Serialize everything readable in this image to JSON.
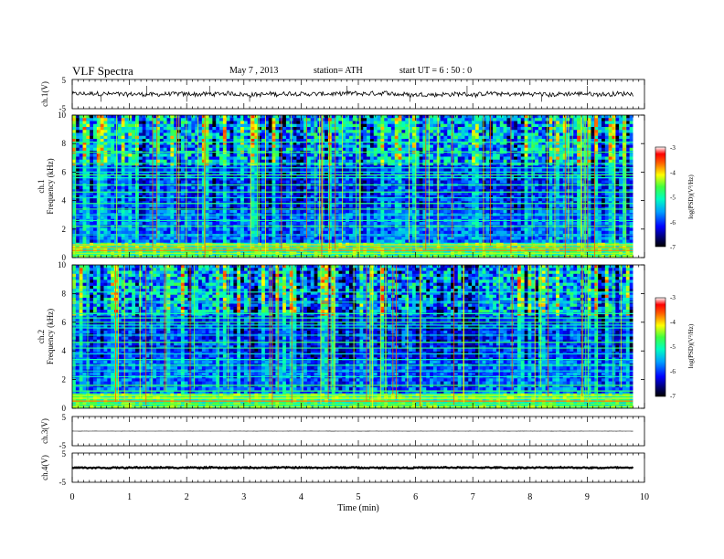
{
  "header": {
    "title": "VLF  Spectra",
    "date": "May 7  , 2013",
    "station": "station= ATH",
    "start": "start  UT  =    6  : 50 : 0"
  },
  "chart_data": [
    {
      "type": "line",
      "panel": "ch1-waveform",
      "ylabel": "ch.1(V)",
      "ylim": [
        -5,
        5
      ],
      "yticks": [
        "5",
        "-5"
      ],
      "xlim": [
        0,
        10
      ],
      "baseline_v": 0,
      "noise_amplitude_v": 1.5,
      "grid": false
    },
    {
      "type": "heatmap",
      "panel": "ch1-spectrogram",
      "ylabel": "ch.1\nFrequency  (kHz)",
      "ylabel_lines": [
        "ch.1",
        "Frequency  (kHz)"
      ],
      "ylim": [
        0,
        10
      ],
      "yticks": [
        "0",
        "2",
        "4",
        "6",
        "8",
        "10"
      ],
      "xlim": [
        0,
        10
      ],
      "data_end_min": 9.8,
      "colorbar": {
        "label": "log(PSD)(V²/Hz)",
        "range": [
          -7,
          -3
        ],
        "ticks": [
          "-3",
          "-4",
          "-5",
          "-6",
          "-7"
        ]
      },
      "narrowband_lines_khz": [
        0.1,
        0.3,
        0.5,
        0.7,
        0.9,
        1.6,
        2.2,
        2.6,
        3.0,
        3.4,
        3.8,
        4.2,
        4.6,
        5.1,
        5.6,
        5.8,
        6.0,
        6.3,
        6.6,
        7.4,
        8.1
      ]
    },
    {
      "type": "heatmap",
      "panel": "ch2-spectrogram",
      "ylabel": "ch.2\nFrequency  (kHz)",
      "ylabel_lines": [
        "ch.2",
        "Frequency  (kHz)"
      ],
      "ylim": [
        0,
        10
      ],
      "yticks": [
        "0",
        "2",
        "4",
        "6",
        "8",
        "10"
      ],
      "xlim": [
        0,
        10
      ],
      "data_end_min": 9.8,
      "colorbar": {
        "label": "log(PSD)(V²/Hz)",
        "range": [
          -7,
          -3
        ],
        "ticks": [
          "-3",
          "-4",
          "-5",
          "-6",
          "-7"
        ]
      },
      "narrowband_lines_khz": [
        0.1,
        0.3,
        0.5,
        0.7,
        0.9,
        1.2,
        1.6,
        2.2,
        2.6,
        3.0,
        3.4,
        3.8,
        4.2,
        4.6,
        5.1,
        5.6,
        5.8,
        6.0,
        6.3,
        6.6,
        7.4,
        8.1
      ]
    },
    {
      "type": "line",
      "panel": "ch3-waveform",
      "ylabel": "ch.3(V)",
      "ylim": [
        -5,
        5
      ],
      "yticks": [
        "5",
        "-5"
      ],
      "xlim": [
        0,
        10
      ],
      "baseline_v": 0,
      "noise_amplitude_v": 0.05,
      "grid": false
    },
    {
      "type": "line",
      "panel": "ch4-waveform",
      "ylabel": "ch.4(V)",
      "ylim": [
        -5,
        5
      ],
      "yticks": [
        "5",
        "-5"
      ],
      "xlim": [
        0,
        10
      ],
      "baseline_v": 0,
      "noise_amplitude_v": 0.4,
      "grid": false
    }
  ],
  "xaxis": {
    "label": "Time  (min)",
    "ticks": [
      "0",
      "1",
      "2",
      "3",
      "4",
      "5",
      "6",
      "7",
      "8",
      "9",
      "10"
    ]
  }
}
